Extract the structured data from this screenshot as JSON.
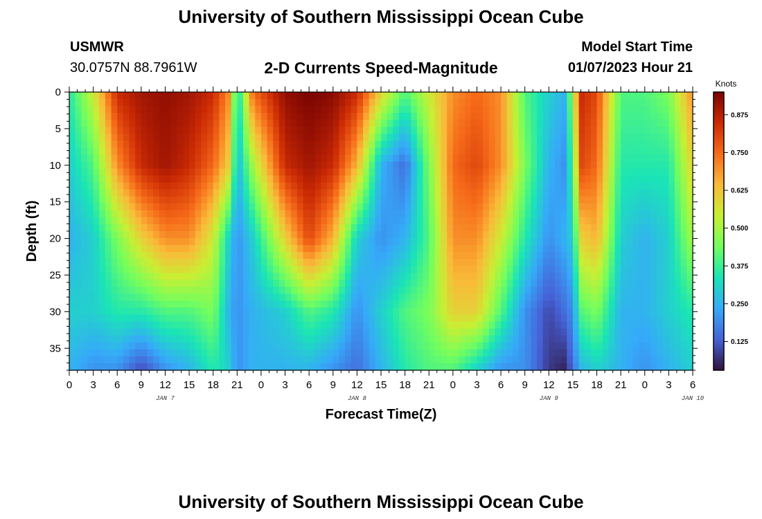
{
  "header": {
    "title": "University of Southern Mississippi Ocean Cube",
    "station": "USMWR",
    "coords": "30.0757N  88.7961W",
    "subtitle": "2-D Currents Speed-Magnitude",
    "model_start_label": "Model Start Time",
    "model_start_value": "01/07/2023 Hour 21"
  },
  "footer": {
    "title": "University of Southern Mississippi Ocean Cube"
  },
  "colors": {
    "ramp": [
      "#30123b",
      "#4662d7",
      "#36aaf9",
      "#1ae4b6",
      "#72fe5e",
      "#c8ef34",
      "#faba39",
      "#f66b19",
      "#cb2a04",
      "#7a0403"
    ]
  },
  "chart_data": {
    "type": "heatmap",
    "xlabel": "Forecast Time(Z)",
    "ylabel": "Depth (ft)",
    "colorbar_label": "Knots",
    "x_ticks": [
      "0",
      "3",
      "6",
      "9",
      "12",
      "15",
      "18",
      "21",
      "0",
      "3",
      "6",
      "9",
      "12",
      "15",
      "18",
      "21",
      "0",
      "3",
      "6",
      "9",
      "12",
      "15",
      "18",
      "21",
      "0",
      "3",
      "6"
    ],
    "day_labels": [
      {
        "label": "JAN 7",
        "hour": 12
      },
      {
        "label": "JAN 8",
        "hour": 36
      },
      {
        "label": "JAN 9",
        "hour": 60
      },
      {
        "label": "JAN 10",
        "hour": 78
      }
    ],
    "x_range_hours": [
      0,
      78
    ],
    "y_ticks": [
      0,
      5,
      10,
      15,
      20,
      25,
      30,
      35
    ],
    "y_range": [
      0,
      38
    ],
    "y_inverted": true,
    "colorbar_ticks": [
      0.125,
      0.25,
      0.375,
      0.5,
      0.625,
      0.75,
      0.875
    ],
    "colorbar_tick_labels": [
      "0.125",
      "0.250",
      "0.375",
      "0.500",
      "0.625",
      "0.750",
      "0.875"
    ],
    "value_range": [
      0.03,
      0.95
    ],
    "depths_ft": [
      0,
      10,
      20,
      30,
      38
    ],
    "times_h": [
      0,
      3,
      6,
      9,
      12,
      15,
      18,
      20,
      21,
      23,
      27,
      30,
      33,
      36,
      39,
      42,
      45,
      48,
      51,
      54,
      57,
      60,
      62,
      63,
      64,
      66,
      69,
      72,
      75,
      78
    ],
    "speed_knots": [
      [
        0.35,
        0.55,
        0.85,
        0.9,
        0.92,
        0.9,
        0.85,
        0.7,
        0.3,
        0.75,
        0.92,
        0.95,
        0.93,
        0.85,
        0.6,
        0.4,
        0.55,
        0.7,
        0.75,
        0.7,
        0.4,
        0.3,
        0.25,
        0.5,
        0.85,
        0.8,
        0.4,
        0.4,
        0.45,
        0.7
      ],
      [
        0.3,
        0.4,
        0.7,
        0.85,
        0.9,
        0.85,
        0.75,
        0.6,
        0.25,
        0.5,
        0.85,
        0.9,
        0.85,
        0.65,
        0.25,
        0.15,
        0.45,
        0.75,
        0.8,
        0.7,
        0.45,
        0.25,
        0.2,
        0.4,
        0.8,
        0.75,
        0.35,
        0.35,
        0.35,
        0.6
      ],
      [
        0.25,
        0.3,
        0.45,
        0.6,
        0.7,
        0.7,
        0.55,
        0.3,
        0.2,
        0.3,
        0.6,
        0.8,
        0.65,
        0.3,
        0.2,
        0.25,
        0.4,
        0.7,
        0.7,
        0.55,
        0.35,
        0.2,
        0.25,
        0.3,
        0.6,
        0.65,
        0.3,
        0.25,
        0.3,
        0.5
      ],
      [
        0.3,
        0.3,
        0.35,
        0.35,
        0.4,
        0.4,
        0.45,
        0.25,
        0.2,
        0.25,
        0.3,
        0.4,
        0.35,
        0.2,
        0.3,
        0.4,
        0.45,
        0.6,
        0.6,
        0.4,
        0.2,
        0.1,
        0.15,
        0.2,
        0.4,
        0.45,
        0.25,
        0.25,
        0.3,
        0.35
      ],
      [
        0.25,
        0.2,
        0.2,
        0.1,
        0.2,
        0.25,
        0.35,
        0.3,
        0.2,
        0.25,
        0.25,
        0.25,
        0.2,
        0.15,
        0.25,
        0.35,
        0.4,
        0.4,
        0.3,
        0.2,
        0.2,
        0.08,
        0.05,
        0.15,
        0.25,
        0.3,
        0.25,
        0.2,
        0.25,
        0.3
      ]
    ]
  }
}
